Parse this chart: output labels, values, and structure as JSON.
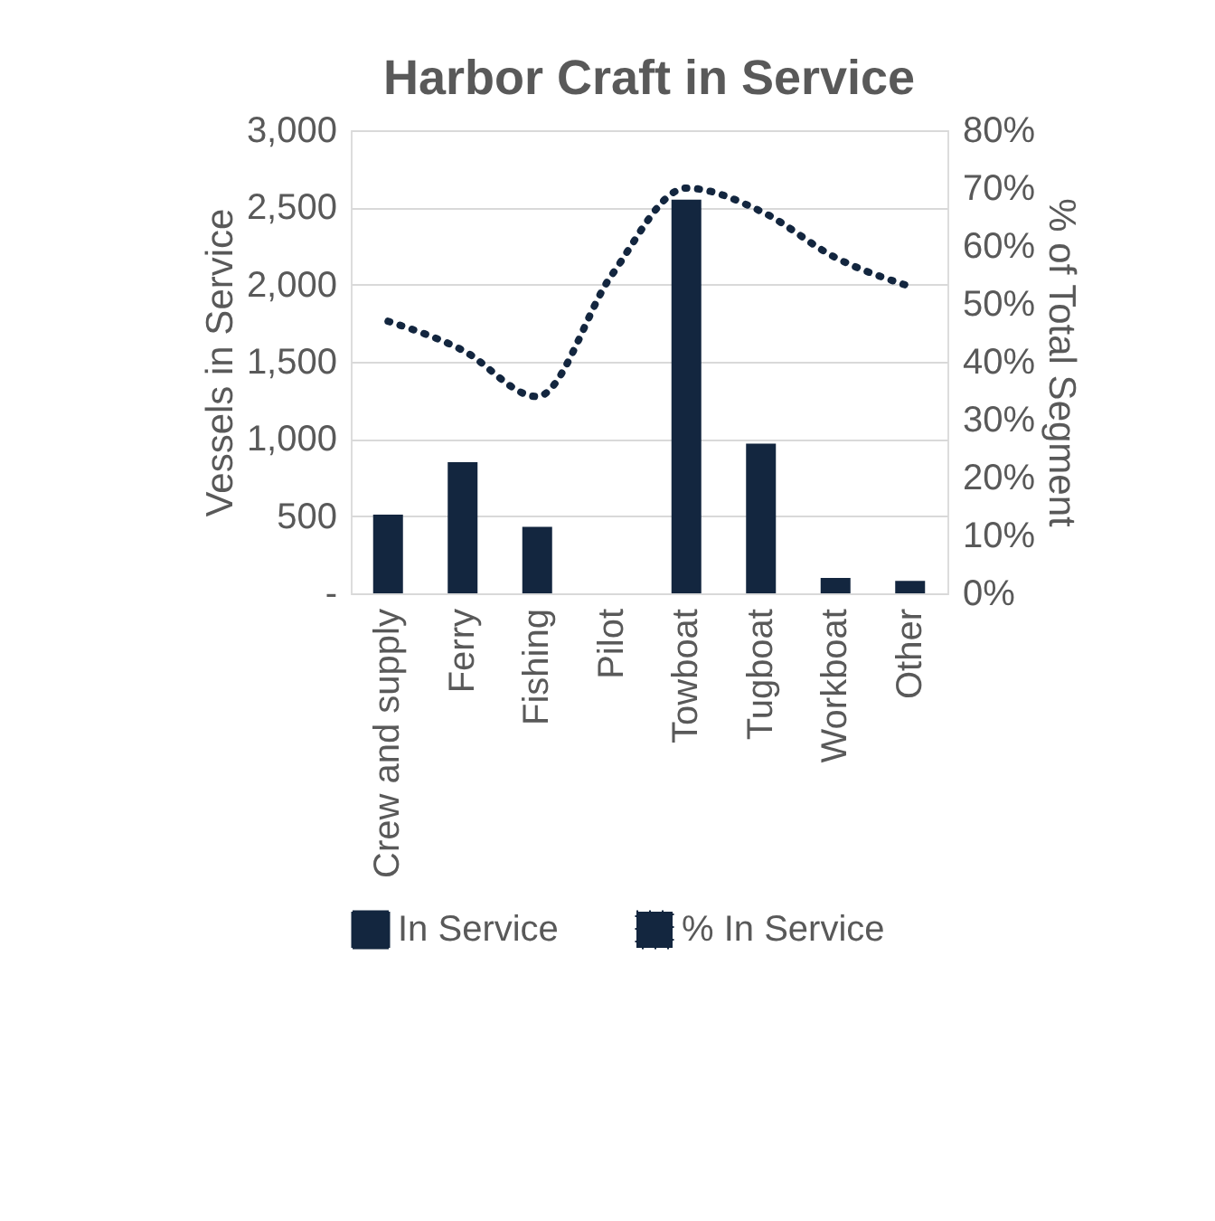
{
  "chart_data": {
    "type": "bar",
    "title": "Harbor Craft in Service",
    "ylabel": "Vessels in Service",
    "y2label": "% of Total Segment",
    "categories": [
      "Crew and supply",
      "Ferry",
      "Fishing",
      "Pilot",
      "Towboat",
      "Tugboat",
      "Workboat",
      "Other"
    ],
    "series": [
      {
        "name": "In Service",
        "color": "#13263f",
        "values": [
          510,
          850,
          430,
          0,
          2550,
          970,
          100,
          80
        ]
      },
      {
        "name": "% In Service",
        "type": "line",
        "axis": "y2",
        "color": "#13263f",
        "line_style": "dotted",
        "values": [
          47,
          42,
          34,
          55,
          70,
          66,
          58,
          53
        ]
      }
    ],
    "ylim": [
      0,
      3000
    ],
    "yticks": [
      {
        "value": 0,
        "label": "-"
      },
      {
        "value": 500,
        "label": "500"
      },
      {
        "value": 1000,
        "label": "1,000"
      },
      {
        "value": 1500,
        "label": "1,500"
      },
      {
        "value": 2000,
        "label": "2,000"
      },
      {
        "value": 2500,
        "label": "2,500"
      },
      {
        "value": 3000,
        "label": "3,000"
      }
    ],
    "y2lim": [
      0,
      80
    ],
    "y2ticks": [
      {
        "value": 0,
        "label": "0%"
      },
      {
        "value": 10,
        "label": "10%"
      },
      {
        "value": 20,
        "label": "20%"
      },
      {
        "value": 30,
        "label": "30%"
      },
      {
        "value": 40,
        "label": "40%"
      },
      {
        "value": 50,
        "label": "50%"
      },
      {
        "value": 60,
        "label": "60%"
      },
      {
        "value": 70,
        "label": "70%"
      },
      {
        "value": 80,
        "label": "80%"
      }
    ],
    "grid": "y",
    "legend": "bottom"
  }
}
